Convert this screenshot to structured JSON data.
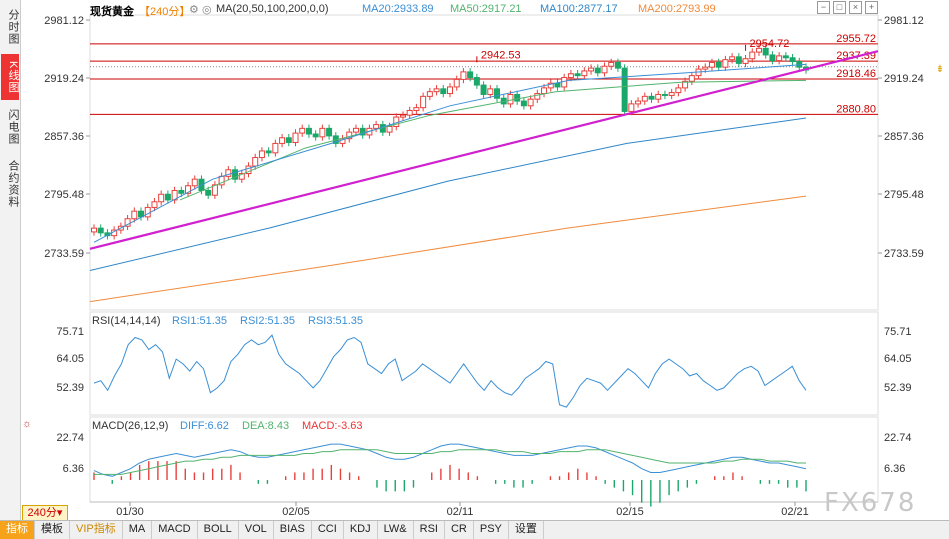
{
  "left_tabs": [
    "分时图",
    "K线图",
    "闪电图",
    "合约资料"
  ],
  "header": {
    "symbol": "现货黄金",
    "period": "【240分】",
    "ma_label": "MA(20,50,100,200,0,0)",
    "ma20": "MA20:2933.89",
    "ma50": "MA50:2917.21",
    "ma100": "MA100:2877.17",
    "ma200": "MA200:2793.99"
  },
  "rsi_header": {
    "label": "RSI(14,14,14)",
    "rsi1": "RSI1:51.35",
    "rsi2": "RSI2:51.35",
    "rsi3": "RSI3:51.35"
  },
  "macd_header": {
    "label": "MACD(26,12,9)",
    "diff": "DIFF:6.62",
    "dea": "DEA:8.43",
    "macd": "MACD:-3.63"
  },
  "period_box": "240分",
  "watermark": "FX678",
  "bottom_tabs": [
    "指标",
    "模板",
    "VIP指标",
    "MA",
    "MACD",
    "BOLL",
    "VOL",
    "BIAS",
    "CCI",
    "KDJ",
    "LW&",
    "RSI",
    "CR",
    "PSY",
    "设置"
  ],
  "colors": {
    "up": "#e8413c",
    "down": "#1aa86a",
    "ma20": "#3a8fd6",
    "ma50": "#52b36d",
    "ma100": "#2f86c8",
    "ma200": "#f08a3c",
    "trend": "#d020d0",
    "hline": "#cc0000"
  },
  "chart_data": {
    "type": "candlestick",
    "price_ticks": [
      "2981.12",
      "2919.24",
      "2857.36",
      "2795.48",
      "2733.59"
    ],
    "x_ticks": [
      "01/30",
      "02/05",
      "02/11",
      "02/15",
      "02/21"
    ],
    "annotations": [
      "2955.72",
      "2954.72",
      "2942.53",
      "2937.39",
      "2918.46",
      "2880.80"
    ],
    "closes": [
      2760,
      2755,
      2752,
      2758,
      2762,
      2770,
      2778,
      2772,
      2782,
      2788,
      2796,
      2790,
      2800,
      2797,
      2805,
      2812,
      2800,
      2795,
      2806,
      2815,
      2822,
      2812,
      2818,
      2826,
      2835,
      2842,
      2840,
      2850,
      2856,
      2851,
      2861,
      2866,
      2860,
      2857,
      2866,
      2858,
      2850,
      2855,
      2862,
      2866,
      2859,
      2866,
      2870,
      2862,
      2868,
      2878,
      2880,
      2885,
      2888,
      2900,
      2905,
      2908,
      2903,
      2910,
      2918,
      2926,
      2920,
      2912,
      2902,
      2908,
      2898,
      2892,
      2902,
      2895,
      2890,
      2897,
      2903,
      2909,
      2914,
      2910,
      2920,
      2924,
      2922,
      2927,
      2930,
      2925,
      2932,
      2936,
      2930,
      2884,
      2892,
      2895,
      2900,
      2897,
      2902,
      2901,
      2904,
      2909,
      2916,
      2922,
      2929,
      2931,
      2936,
      2931,
      2939,
      2942,
      2935,
      2940,
      2947,
      2951,
      2944,
      2938,
      2943,
      2941,
      2937,
      2931,
      2928
    ],
    "ma20": [
      2745,
      2812,
      2850,
      2890,
      2917,
      2925,
      2934
    ],
    "ma50": [
      2790,
      2845,
      2880,
      2905,
      2915,
      2917
    ],
    "ma100": [
      2715,
      2760,
      2810,
      2850,
      2877
    ],
    "ma200": [
      2682,
      2720,
      2760,
      2794
    ],
    "trendline": [
      2738,
      2948
    ],
    "rsi_ticks": [
      "75.71",
      "64.05",
      "52.39"
    ],
    "rsi": [
      54,
      55,
      51,
      57,
      62,
      70,
      73,
      72,
      68,
      70,
      67,
      56,
      64,
      62,
      59,
      63,
      60,
      50,
      52,
      55,
      63,
      66,
      70,
      72,
      70,
      71,
      74,
      66,
      62,
      60,
      58,
      55,
      52,
      55,
      60,
      65,
      68,
      72,
      73,
      71,
      62,
      60,
      58,
      62,
      64,
      55,
      57,
      59,
      62,
      60,
      58,
      56,
      54,
      58,
      62,
      58,
      54,
      51,
      55,
      52,
      50,
      49,
      52,
      56,
      58,
      60,
      63,
      62,
      45,
      44,
      48,
      53,
      56,
      55,
      54,
      51,
      54,
      57,
      60,
      58,
      55,
      52,
      58,
      62,
      64,
      62,
      60,
      57,
      58,
      55,
      53,
      51,
      52,
      55,
      58,
      60,
      61,
      59,
      53,
      55,
      57,
      59,
      61,
      55,
      51
    ],
    "macd_ticks": [
      "22.74",
      "6.36"
    ],
    "diff": [
      5,
      3,
      2,
      4,
      6,
      9,
      11,
      12,
      13,
      14,
      13,
      12,
      13,
      14,
      15,
      16,
      15,
      13,
      12,
      12,
      13,
      14,
      15,
      16,
      17,
      18,
      19,
      19,
      18,
      17,
      16,
      14,
      12,
      11,
      11,
      12,
      14,
      16,
      18,
      19,
      19,
      18,
      17,
      16,
      15,
      14,
      13,
      13,
      13,
      14,
      15,
      16,
      17,
      18,
      18,
      17,
      15,
      13,
      11,
      9,
      6,
      4,
      4,
      5,
      6,
      7,
      8,
      9,
      10,
      11,
      12,
      12,
      11,
      10,
      9,
      9,
      8,
      7,
      6
    ],
    "dea": [
      3,
      3,
      3,
      3,
      4,
      5,
      6,
      7,
      8,
      9,
      10,
      10,
      11,
      11,
      12,
      12,
      13,
      13,
      13,
      13,
      13,
      13,
      13,
      14,
      14,
      15,
      15,
      16,
      16,
      16,
      16,
      16,
      15,
      14,
      14,
      14,
      14,
      14,
      15,
      15,
      16,
      16,
      16,
      16,
      16,
      15,
      15,
      15,
      14,
      14,
      14,
      15,
      15,
      15,
      16,
      16,
      16,
      15,
      14,
      13,
      12,
      11,
      10,
      9,
      9,
      9,
      9,
      9,
      9,
      10,
      10,
      11,
      11,
      11,
      10,
      10,
      10,
      9,
      9
    ]
  }
}
